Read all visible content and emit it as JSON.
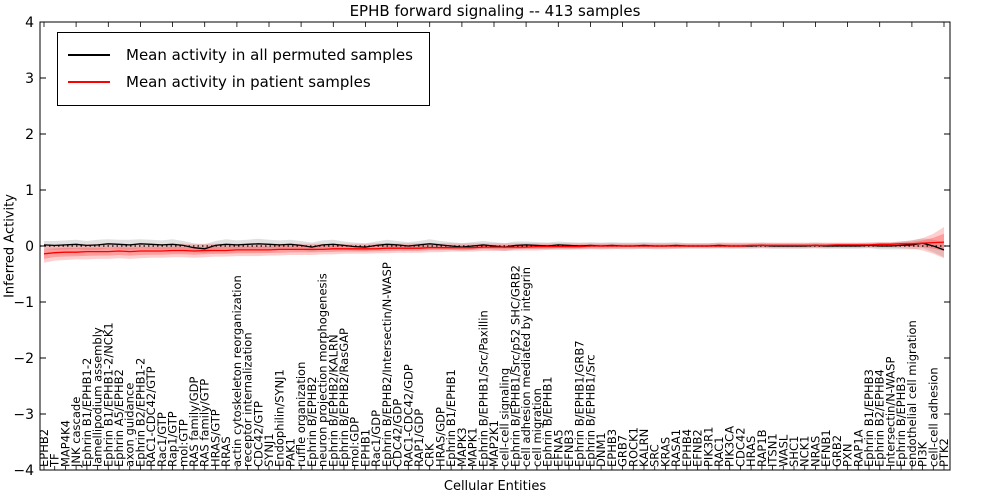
{
  "title": "EPHB forward signaling -- 413 samples",
  "chart_data": {
    "type": "line",
    "title": "EPHB forward signaling -- 413 samples",
    "xlabel": "Cellular Entities",
    "ylabel": "Inferred Activity",
    "ylim": [
      -4,
      4
    ],
    "yticks": [
      -4,
      -3,
      -2,
      -1,
      0,
      1,
      2,
      3,
      4
    ],
    "grid": false,
    "legend_position": "upper left",
    "legend": [
      {
        "label": "Mean activity in all permuted samples",
        "color": "#000000"
      },
      {
        "label": "Mean activity in patient samples",
        "color": "#ff0000"
      }
    ],
    "colors": {
      "permuted_line": "#000000",
      "patient_line": "#ff0000",
      "patient_band": "#ff4040",
      "permuted_band": "#999999",
      "zero_line": "#000000"
    },
    "categories": [
      "EPHB2",
      "TF",
      "MAP4K4",
      "JNK cascade",
      "Ephrin B1/EPHB1-2",
      "lamellipodium assembly",
      "Ephrin B1/EPHB1-2/NCK1",
      "Ephrin A5/EPHB2",
      "axon guidance",
      "Ephrin B2/EPHB1-2",
      "RAC1-CDC42/GTP",
      "Rac1/GTP",
      "Rap1/GTP",
      "mol:GTP",
      "RAS family/GDP",
      "RAS family/GTP",
      "HRAS/GTP",
      "RRAS",
      "actin cytoskeleton reorganization",
      "receptor internalization",
      "CDC42/GTP",
      "SYNJ1",
      "Endophilin/SYNJ1",
      "PAK1",
      "ruffle organization",
      "Ephrin B/EPHB2",
      "neuron projection morphogenesis",
      "Ephrin B/EPHB2/KALRN",
      "Ephrin B/EPHB2/RasGAP",
      "mol:GDP",
      "EPHB1",
      "Rac1/GDP",
      "Ephrin B/EPHB2/Intersectin/N-WASP",
      "CDC42/GDP",
      "RAC1-CDC42/GDP",
      "RAP1/GDP",
      "CRK",
      "HRAS/GDP",
      "Ephrin B1/EPHB1",
      "MAPK3",
      "MAPK1",
      "Ephrin B/EPHB1/Src/Paxillin",
      "MAP2K1",
      "cell-cell signaling",
      "Ephrin B/EPHB1/Src/p52 SHC/GRB2",
      "cell adhesion mediated by integrin",
      "cell migration",
      "Ephrin B/EPHB1",
      "EFNA5",
      "EFNB3",
      "Ephrin B/EPHB1/GRB7",
      "Ephrin B/EPHB1/Src",
      "DNM1",
      "EPHB3",
      "GRB7",
      "ROCK1",
      "KALRN",
      "SRC",
      "KRAS",
      "RASA1",
      "EPHB4",
      "EFNB2",
      "PIK3R1",
      "RAC1",
      "PIK3CA",
      "CDC42",
      "HRAS",
      "RAP1B",
      "ITSN1",
      "WASL",
      "SHC1",
      "NCK1",
      "NRAS",
      "EFNB1",
      "GRB2",
      "PXN",
      "RAP1A",
      "Ephrin B1/EPHB3",
      "Ephrin B2/EPHB4",
      "Intersectin/N-WASP",
      "Ephrin B/EPHB3",
      "endothelial cell migration",
      "PI3K",
      "cell-cell adhesion",
      "PTK2"
    ],
    "series_data": {
      "permuted_mean": [
        0.02,
        0.01,
        0.02,
        0.03,
        0.01,
        0.02,
        0.04,
        0.03,
        0.02,
        0.04,
        0.03,
        0.02,
        0.03,
        0.01,
        -0.03,
        -0.05,
        0.01,
        0.03,
        0.02,
        0.03,
        0.04,
        0.03,
        0.02,
        0.03,
        0.01,
        -0.02,
        0.02,
        0.03,
        0.01,
        -0.01,
        -0.02,
        0.01,
        0.03,
        0.02,
        0.0,
        0.02,
        0.04,
        0.02,
        0.0,
        -0.02,
        0.0,
        0.02,
        0.0,
        -0.02,
        0.01,
        0.02,
        0.01,
        0.0,
        0.02,
        0.01,
        0.0,
        0.01,
        0.0,
        0.01,
        0.0,
        0.0,
        0.01,
        0.0,
        0.0,
        0.01,
        0.0,
        0.0,
        0.0,
        0.01,
        0.0,
        0.0,
        0.0,
        0.01,
        0.0,
        0.0,
        0.0,
        0.0,
        0.01,
        0.0,
        0.0,
        0.0,
        0.0,
        0.01,
        0.0,
        0.0,
        0.01,
        0.02,
        0.05,
        0.0,
        -0.07
      ],
      "permuted_halfwidth": [
        0.07,
        0.08,
        0.08,
        0.08,
        0.08,
        0.09,
        0.08,
        0.08,
        0.09,
        0.08,
        0.08,
        0.08,
        0.09,
        0.08,
        0.08,
        0.08,
        0.08,
        0.09,
        0.08,
        0.08,
        0.09,
        0.08,
        0.08,
        0.08,
        0.08,
        0.08,
        0.08,
        0.08,
        0.07,
        0.07,
        0.07,
        0.07,
        0.08,
        0.07,
        0.07,
        0.07,
        0.08,
        0.07,
        0.07,
        0.07,
        0.07,
        0.07,
        0.07,
        0.07,
        0.07,
        0.06,
        0.06,
        0.06,
        0.06,
        0.06,
        0.06,
        0.06,
        0.06,
        0.06,
        0.06,
        0.06,
        0.06,
        0.06,
        0.06,
        0.06,
        0.05,
        0.05,
        0.05,
        0.05,
        0.05,
        0.05,
        0.05,
        0.05,
        0.05,
        0.05,
        0.05,
        0.05,
        0.05,
        0.05,
        0.05,
        0.05,
        0.05,
        0.05,
        0.06,
        0.06,
        0.07,
        0.08,
        0.09,
        0.11,
        0.13
      ],
      "patient_mean": [
        -0.14,
        -0.12,
        -0.11,
        -0.11,
        -0.1,
        -0.1,
        -0.1,
        -0.09,
        -0.1,
        -0.09,
        -0.09,
        -0.09,
        -0.08,
        -0.08,
        -0.09,
        -0.08,
        -0.08,
        -0.08,
        -0.07,
        -0.07,
        -0.07,
        -0.07,
        -0.06,
        -0.06,
        -0.06,
        -0.06,
        -0.06,
        -0.05,
        -0.05,
        -0.05,
        -0.05,
        -0.05,
        -0.04,
        -0.04,
        -0.04,
        -0.04,
        -0.03,
        -0.03,
        -0.03,
        -0.03,
        -0.03,
        -0.02,
        -0.02,
        -0.02,
        -0.02,
        -0.02,
        -0.01,
        -0.01,
        -0.01,
        -0.01,
        -0.01,
        0.0,
        0.0,
        0.0,
        0.0,
        0.0,
        0.0,
        0.0,
        0.0,
        0.0,
        0.0,
        0.0,
        0.0,
        0.0,
        0.0,
        0.0,
        0.01,
        0.01,
        0.01,
        0.01,
        0.01,
        0.01,
        0.01,
        0.01,
        0.02,
        0.02,
        0.02,
        0.02,
        0.03,
        0.03,
        0.04,
        0.04,
        0.05,
        0.06,
        0.07
      ],
      "patient_upper": [
        0.02,
        0.02,
        0.03,
        0.03,
        0.03,
        0.03,
        0.03,
        0.03,
        0.03,
        0.03,
        0.03,
        0.03,
        0.04,
        0.04,
        0.03,
        0.04,
        0.04,
        0.04,
        0.04,
        0.04,
        0.04,
        0.04,
        0.04,
        0.04,
        0.04,
        0.04,
        0.04,
        0.04,
        0.04,
        0.04,
        0.04,
        0.05,
        0.05,
        0.05,
        0.05,
        0.05,
        0.05,
        0.05,
        0.05,
        0.05,
        0.05,
        0.05,
        0.05,
        0.05,
        0.05,
        0.05,
        0.05,
        0.05,
        0.05,
        0.05,
        0.05,
        0.05,
        0.05,
        0.05,
        0.05,
        0.05,
        0.05,
        0.05,
        0.05,
        0.05,
        0.05,
        0.05,
        0.05,
        0.06,
        0.06,
        0.06,
        0.06,
        0.06,
        0.06,
        0.06,
        0.06,
        0.06,
        0.06,
        0.06,
        0.06,
        0.06,
        0.06,
        0.06,
        0.07,
        0.07,
        0.08,
        0.1,
        0.14,
        0.22,
        0.34
      ],
      "patient_lower": [
        -0.3,
        -0.26,
        -0.25,
        -0.24,
        -0.24,
        -0.23,
        -0.23,
        -0.22,
        -0.23,
        -0.22,
        -0.21,
        -0.21,
        -0.2,
        -0.2,
        -0.21,
        -0.2,
        -0.19,
        -0.19,
        -0.18,
        -0.18,
        -0.18,
        -0.17,
        -0.17,
        -0.16,
        -0.16,
        -0.16,
        -0.15,
        -0.15,
        -0.14,
        -0.14,
        -0.14,
        -0.13,
        -0.13,
        -0.12,
        -0.12,
        -0.12,
        -0.11,
        -0.11,
        -0.1,
        -0.1,
        -0.1,
        -0.09,
        -0.09,
        -0.09,
        -0.08,
        -0.08,
        -0.08,
        -0.07,
        -0.07,
        -0.07,
        -0.06,
        -0.06,
        -0.06,
        -0.06,
        -0.05,
        -0.05,
        -0.05,
        -0.05,
        -0.05,
        -0.05,
        -0.04,
        -0.04,
        -0.04,
        -0.04,
        -0.04,
        -0.04,
        -0.04,
        -0.04,
        -0.04,
        -0.04,
        -0.04,
        -0.04,
        -0.04,
        -0.04,
        -0.03,
        -0.03,
        -0.03,
        -0.03,
        -0.03,
        -0.03,
        -0.04,
        -0.05,
        -0.08,
        -0.14,
        -0.22
      ]
    }
  }
}
